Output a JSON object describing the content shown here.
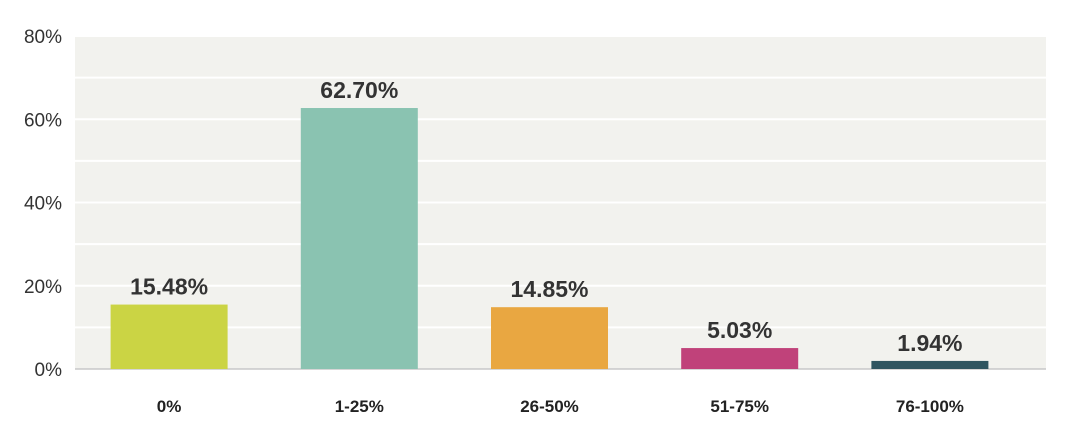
{
  "chart_data": {
    "type": "bar",
    "categories": [
      "0%",
      "1-25%",
      "26-50%",
      "51-75%",
      "76-100%"
    ],
    "values": [
      15.48,
      62.7,
      14.85,
      5.03,
      1.94
    ],
    "data_labels": [
      "15.48%",
      "62.70%",
      "14.85%",
      "5.03%",
      "1.94%"
    ],
    "bar_colors": [
      "#CBD444",
      "#8AC3B1",
      "#E9A741",
      "#C0427A",
      "#2F5560"
    ],
    "title": "",
    "xlabel": "",
    "ylabel": "",
    "ylim": [
      0,
      80
    ],
    "y_ticks": [
      0,
      20,
      40,
      60,
      80
    ],
    "y_tick_labels": [
      "0%",
      "20%",
      "40%",
      "60%",
      "80%"
    ],
    "grid": true,
    "legend": "none",
    "plot_background": "#F2F2EE",
    "grid_color": "#FFFFFF"
  }
}
